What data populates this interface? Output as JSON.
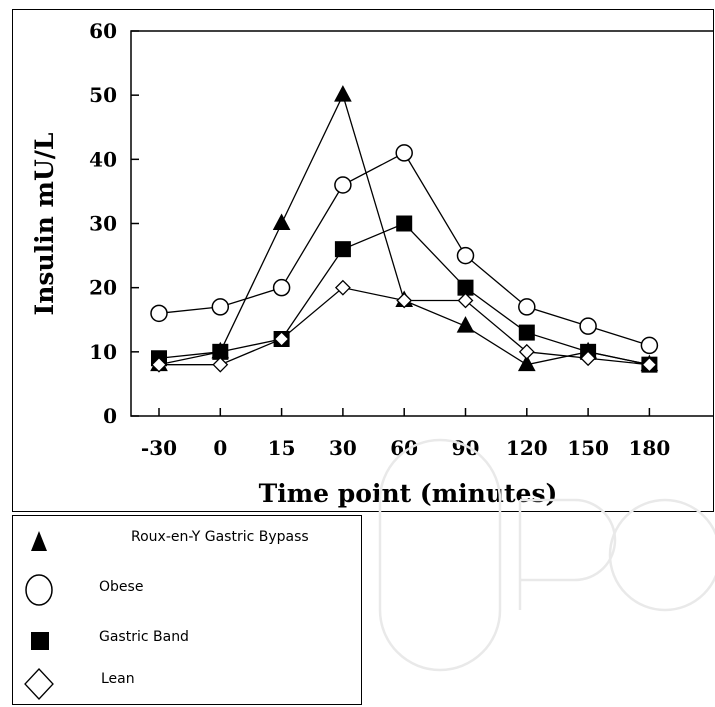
{
  "chart_data": {
    "type": "line",
    "title": "",
    "xlabel": "Time point (minutes)",
    "ylabel": "Insulin mU/L",
    "categories": [
      "-30",
      "0",
      "15",
      "30",
      "60",
      "90",
      "120",
      "150",
      "180"
    ],
    "yticks": [
      "0",
      "10",
      "20",
      "30",
      "40",
      "50",
      "60"
    ],
    "ylim": [
      0,
      60
    ],
    "grid": false,
    "legend_position": "below",
    "series": [
      {
        "name": "Roux-en-Y Gastric Bypass",
        "marker": "filled-triangle",
        "values": [
          8,
          10,
          30,
          50,
          18,
          14,
          8,
          10,
          8
        ]
      },
      {
        "name": "Obese",
        "marker": "open-circle",
        "values": [
          16,
          17,
          20,
          36,
          41,
          25,
          17,
          14,
          11
        ]
      },
      {
        "name": "Gastric Band",
        "marker": "filled-square",
        "values": [
          9,
          10,
          12,
          26,
          30,
          20,
          13,
          10,
          8
        ]
      },
      {
        "name": "Lean",
        "marker": "open-diamond",
        "values": [
          8,
          8,
          12,
          20,
          18,
          18,
          10,
          9,
          8
        ]
      }
    ],
    "line_color": "#000000"
  }
}
